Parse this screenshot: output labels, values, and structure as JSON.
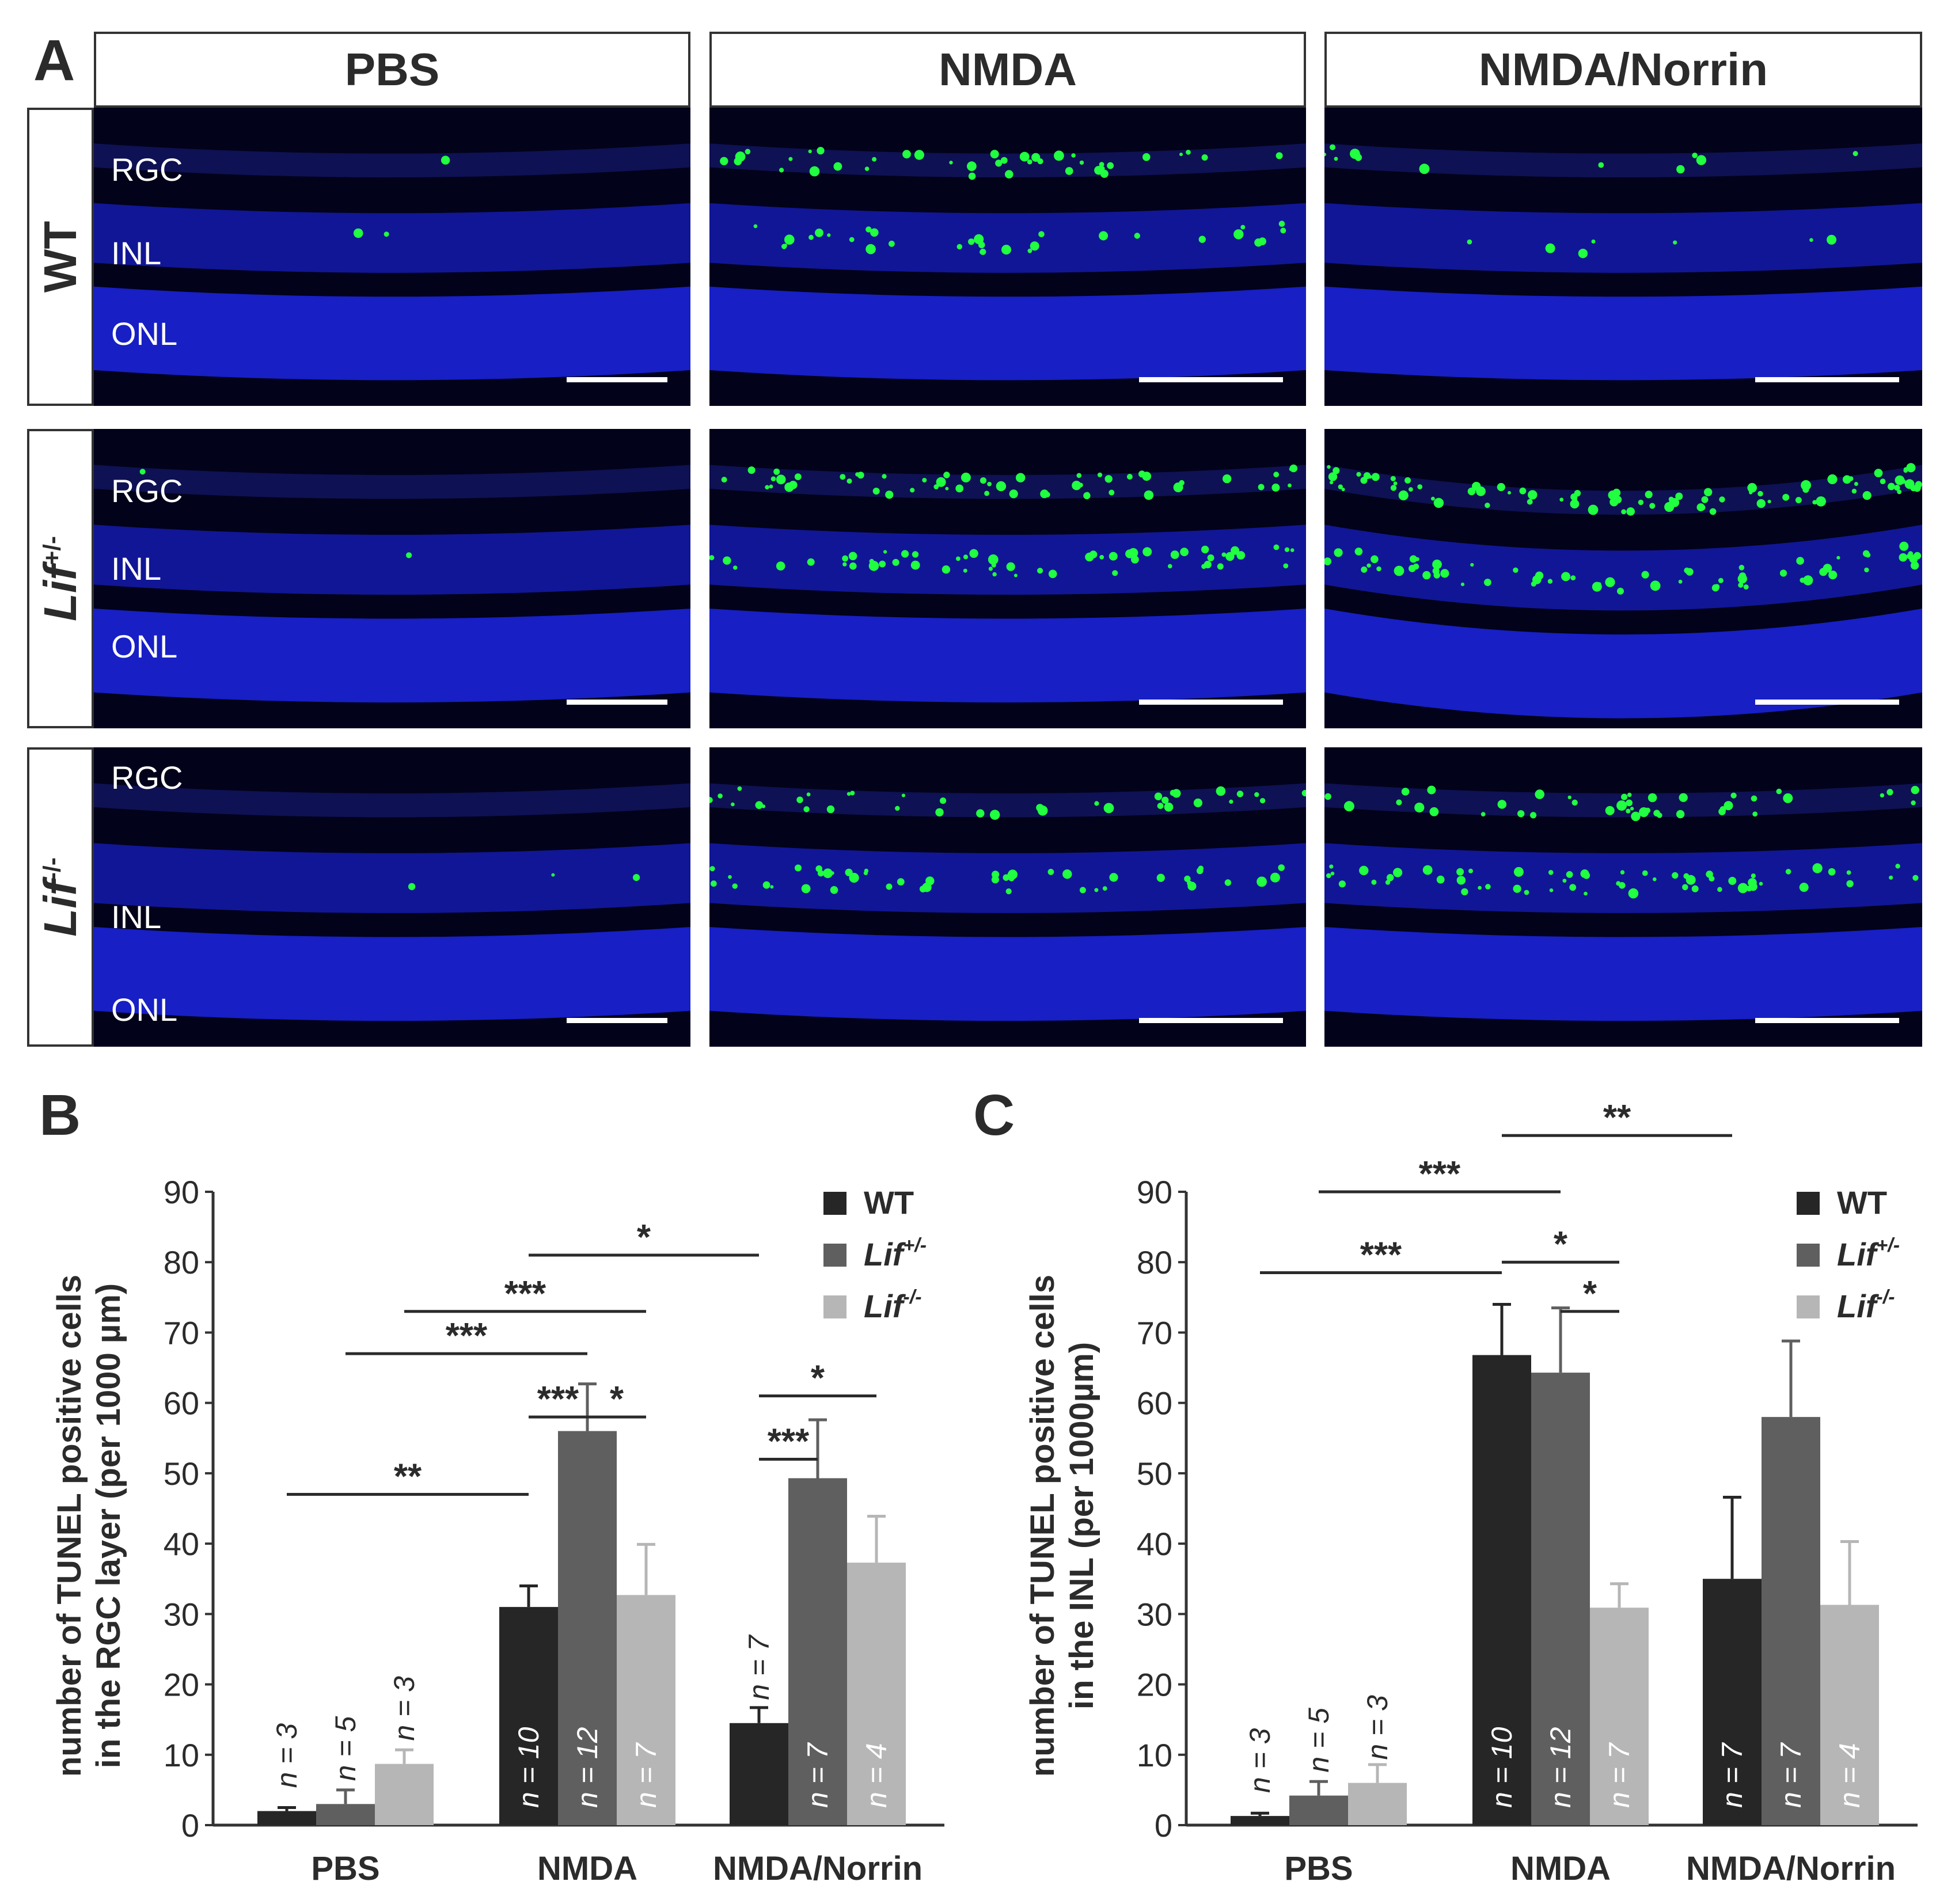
{
  "panels": {
    "a": "A",
    "b": "B",
    "c": "C"
  },
  "figure_a": {
    "columns": [
      "PBS",
      "NMDA",
      "NMDA/Norrin"
    ],
    "rows": [
      {
        "genotype": "WT",
        "superscript": ""
      },
      {
        "genotype": "Lif",
        "superscript": "+/-"
      },
      {
        "genotype": "Lif",
        "superscript": "-/-"
      }
    ],
    "layer_labels": {
      "rgc": "RGC",
      "inl": "INL",
      "onl": "ONL"
    },
    "colors": {
      "background": "#02021a",
      "nuclei": "#1a22d8",
      "tunel": "#20ff40"
    }
  },
  "chart_data": [
    {
      "type": "bar",
      "panel": "B",
      "ylabel_line1": "number of TUNEL positive cells",
      "ylabel_line2": "in the RGC layer (per 1000 µm)",
      "categories": [
        "PBS",
        "NMDA",
        "NMDA/Norrin"
      ],
      "ylim": [
        0,
        90
      ],
      "yticks": [
        "0",
        "10",
        "20",
        "30",
        "40",
        "50",
        "60",
        "70",
        "80",
        "90"
      ],
      "series": [
        {
          "name": "WT",
          "superscript": "",
          "color": "#262626",
          "values": [
            2.0,
            31.0,
            14.5
          ],
          "errors": [
            0.5,
            3.0,
            2.2
          ],
          "n": [
            "n = 3",
            "n = 10",
            "n = 7"
          ]
        },
        {
          "name": "Lif",
          "superscript": "+/-",
          "color": "#5f5f5f",
          "values": [
            3.0,
            56.0,
            49.3
          ],
          "errors": [
            2.0,
            6.7,
            8.3
          ],
          "n": [
            "n = 5",
            "n = 12",
            "n = 7"
          ]
        },
        {
          "name": "Lif",
          "superscript": "-/-",
          "color": "#b6b6b6",
          "values": [
            8.7,
            32.7,
            37.3
          ],
          "errors": [
            2.0,
            7.2,
            6.6
          ],
          "n": [
            "n = 3",
            "n = 7",
            "n = 4"
          ]
        }
      ],
      "significance": [
        {
          "label": "**",
          "from": [
            0,
            0
          ],
          "to": [
            1,
            0
          ],
          "y": 47
        },
        {
          "label": "***",
          "from": [
            1,
            0
          ],
          "to": [
            1,
            1
          ],
          "y": 58
        },
        {
          "label": "*",
          "from": [
            1,
            1
          ],
          "to": [
            1,
            2
          ],
          "y": 58
        },
        {
          "label": "***",
          "from": [
            0,
            1
          ],
          "to": [
            1,
            1
          ],
          "y": 67
        },
        {
          "label": "***",
          "from": [
            0,
            2
          ],
          "to": [
            1,
            2
          ],
          "y": 73
        },
        {
          "label": "*",
          "from": [
            1,
            0
          ],
          "to": [
            2,
            0
          ],
          "y": 81
        },
        {
          "label": "***",
          "from": [
            2,
            0
          ],
          "to": [
            2,
            1
          ],
          "y": 52
        },
        {
          "label": "*",
          "from": [
            2,
            0
          ],
          "to": [
            2,
            2
          ],
          "y": 61
        }
      ]
    },
    {
      "type": "bar",
      "panel": "C",
      "ylabel_line1": "number of TUNEL positive cells",
      "ylabel_line2": "in the INL (per 1000µm)",
      "categories": [
        "PBS",
        "NMDA",
        "NMDA/Norrin"
      ],
      "ylim": [
        0,
        90
      ],
      "yticks": [
        "0",
        "10",
        "20",
        "30",
        "40",
        "50",
        "60",
        "70",
        "80",
        "90"
      ],
      "series": [
        {
          "name": "WT",
          "superscript": "",
          "color": "#262626",
          "values": [
            1.3,
            66.8,
            35.0
          ],
          "errors": [
            0.4,
            7.2,
            11.6
          ],
          "n": [
            "n = 3",
            "n = 10",
            "n = 7"
          ]
        },
        {
          "name": "Lif",
          "superscript": "+/-",
          "color": "#5f5f5f",
          "values": [
            4.2,
            64.3,
            58.0
          ],
          "errors": [
            2.0,
            9.2,
            10.8
          ],
          "n": [
            "n = 5",
            "n = 12",
            "n = 7"
          ]
        },
        {
          "name": "Lif",
          "superscript": "-/-",
          "color": "#b6b6b6",
          "values": [
            6.0,
            30.9,
            31.3
          ],
          "errors": [
            2.6,
            3.4,
            9.0
          ],
          "n": [
            "n = 3",
            "n = 7",
            "n = 4"
          ]
        }
      ],
      "significance": [
        {
          "label": "***",
          "from": [
            0,
            0
          ],
          "to": [
            1,
            0
          ],
          "y": 78.5
        },
        {
          "label": "*",
          "from": [
            1,
            1
          ],
          "to": [
            1,
            2
          ],
          "y": 73
        },
        {
          "label": "*",
          "from": [
            1,
            0
          ],
          "to": [
            1,
            2
          ],
          "y": 80
        },
        {
          "label": "***",
          "from": [
            0,
            1
          ],
          "to": [
            1,
            1
          ],
          "y": 90
        },
        {
          "label": "**",
          "from": [
            1,
            0
          ],
          "to": [
            2,
            0
          ],
          "y": 98
        }
      ]
    }
  ]
}
